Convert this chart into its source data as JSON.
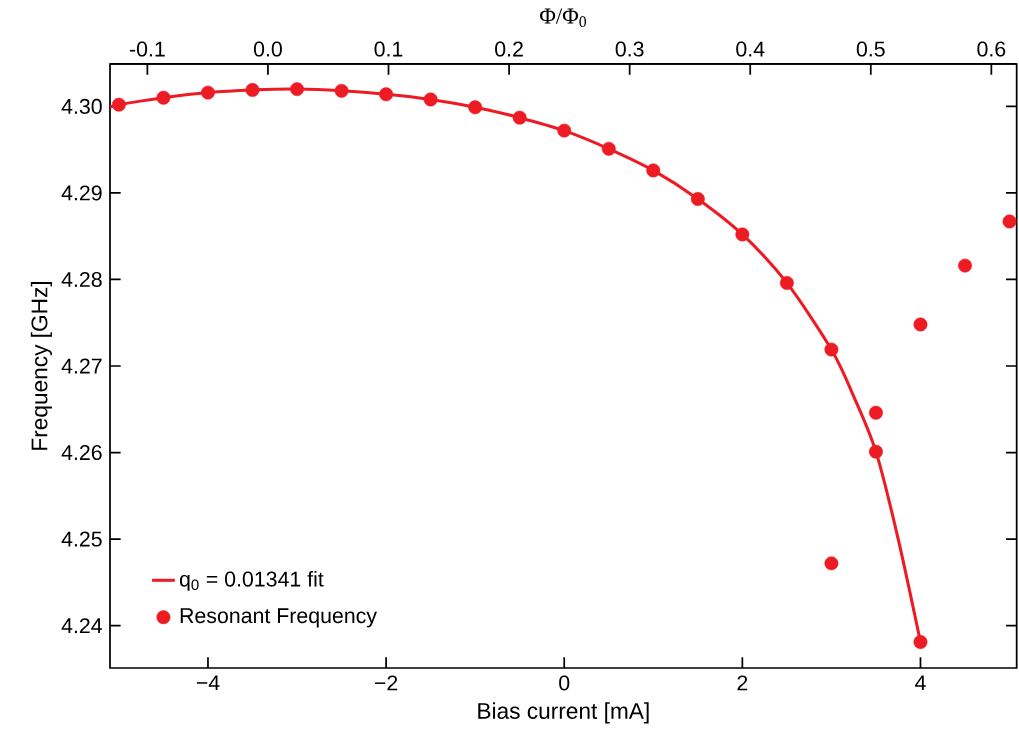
{
  "chart_data": {
    "type": "scatter",
    "xlabel": "Bias current [mA]",
    "ylabel": "Frequency [GHz]",
    "x2label": "Φ/Φ$_{0}$",
    "xlim": [
      -5.1,
      5.08
    ],
    "ylim": [
      4.2351,
      4.3049
    ],
    "x2lim": [
      -0.131,
      0.621
    ],
    "xticks": [
      {
        "value": -4,
        "label": "−4"
      },
      {
        "value": -2,
        "label": "−2"
      },
      0,
      2,
      4
    ],
    "yticks": [
      {
        "value": 4.24,
        "label": "4.24"
      },
      4.25,
      4.26,
      4.27,
      4.28,
      4.29,
      {
        "value": 4.3,
        "label": "4.30"
      }
    ],
    "x2ticks": [
      -0.1,
      {
        "value": 0,
        "label": "0.0"
      },
      0.1,
      0.2,
      0.3,
      0.4,
      0.5,
      0.6
    ],
    "legend": "bottom left",
    "grid": false,
    "series": [
      {
        "name": "q$_{0}$ = 0.01341 fit",
        "type": "line",
        "marker": "none",
        "line_style": "solid",
        "color": "#ed1c24",
        "x": [
          -5.1,
          -5,
          -4.5,
          -4,
          -3.5,
          -3,
          -2.5,
          -2,
          -1.5,
          -1,
          -0.5,
          0,
          0.5,
          1,
          1.5,
          2,
          2.5,
          3,
          3.25,
          3.5,
          3.75,
          4
        ],
        "values": [
          4.2999,
          4.3002,
          4.301,
          4.3016,
          4.3019,
          4.302,
          4.3018,
          4.3014,
          4.3008,
          4.2999,
          4.2987,
          4.2972,
          4.2951,
          4.2926,
          4.2893,
          4.2852,
          4.2796,
          4.2719,
          4.2665,
          4.2601,
          4.25,
          4.2381
        ]
      },
      {
        "name": "Resonant Frequency",
        "marker": "circle",
        "color": "#ed1c24",
        "x": [
          -5,
          -4.5,
          -4,
          -3.5,
          -3,
          -2.5,
          -2,
          -1.5,
          -1,
          -0.5,
          0,
          0.5,
          1,
          1.5,
          2,
          2.5,
          3,
          3,
          3.5,
          3.5,
          4,
          4,
          4.5,
          5
        ],
        "values": [
          4.3002,
          4.301,
          4.3016,
          4.3019,
          4.302,
          4.3018,
          4.3014,
          4.3008,
          4.2999,
          4.2987,
          4.2972,
          4.2951,
          4.2926,
          4.2893,
          4.2852,
          4.2796,
          4.2719,
          4.2472,
          4.2646,
          4.2601,
          4.2748,
          4.2381,
          4.2816,
          4.2867
        ]
      }
    ]
  }
}
